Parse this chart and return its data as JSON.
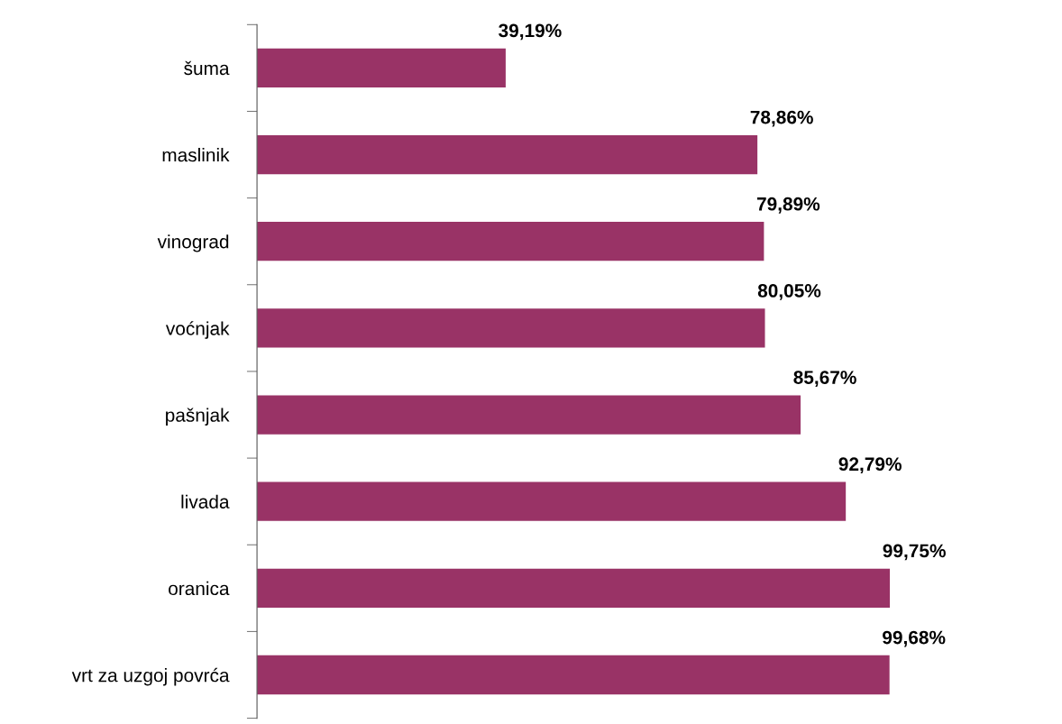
{
  "chart_data": {
    "type": "bar",
    "orientation": "horizontal",
    "categories": [
      "šuma",
      "maslinik",
      "vinograd",
      "voćnjak",
      "pašnjak",
      "livada",
      "oranica",
      "vrt za uzgoj povrća"
    ],
    "values": [
      39.19,
      78.86,
      79.89,
      80.05,
      85.67,
      92.79,
      99.75,
      99.68
    ],
    "value_labels": [
      "39,19%",
      "78,86%",
      "79,89%",
      "80,05%",
      "85,67%",
      "92,79%",
      "99,75%",
      "99,68%"
    ],
    "color": "#993366",
    "tick_labels": "y",
    "grid": false,
    "legend": false
  }
}
